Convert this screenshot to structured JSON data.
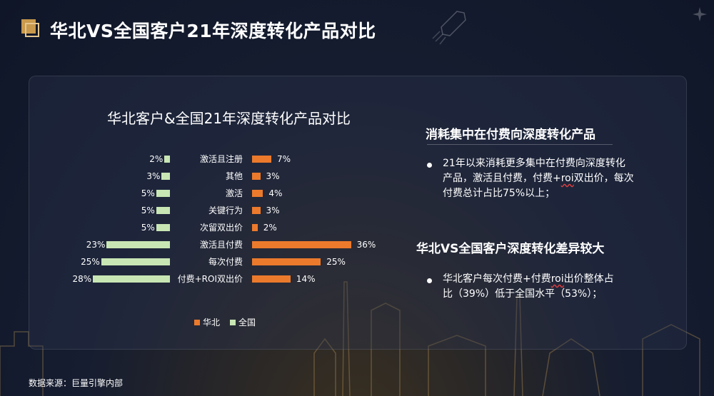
{
  "slide": {
    "title": "华北VS全国客户21年深度转化产品对比",
    "source": "数据来源：巨量引擎内部"
  },
  "chart_data": {
    "type": "bar",
    "title": "华北客户&全国21年深度转化产品对比",
    "orientation": "horizontal-butterfly",
    "categories": [
      "激活且注册",
      "其他",
      "激活",
      "关键行为",
      "次留双出价",
      "激活且付费",
      "每次付费",
      "付费+ROI双出价"
    ],
    "series": [
      {
        "name": "华北",
        "values": [
          7,
          3,
          4,
          3,
          2,
          36,
          25,
          14
        ],
        "labels": [
          "7%",
          "3%",
          "4%",
          "3%",
          "2%",
          "36%",
          "25%",
          "14%"
        ],
        "color": "#ec7a2c"
      },
      {
        "name": "全国",
        "values": [
          2,
          3,
          5,
          5,
          5,
          23,
          25,
          28
        ],
        "labels": [
          "2%",
          "3%",
          "5%",
          "5%",
          "5%",
          "23%",
          "25%",
          "28%"
        ],
        "color": "#c8e6b4"
      }
    ],
    "legend_position": "bottom",
    "grid": false
  },
  "insights": [
    {
      "heading": "消耗集中在付费向深度转化产品",
      "text": "21年以来消耗更多集中在付费向深度转化产品，激活且付费，付费+roi双出价，每次付费总计占比75%以上；"
    },
    {
      "heading": "华北VS全国客户深度转化差异较大",
      "text": "华北客户每次付费+付费roi出价整体占比（39%）低于全国水平（53%）；"
    }
  ]
}
